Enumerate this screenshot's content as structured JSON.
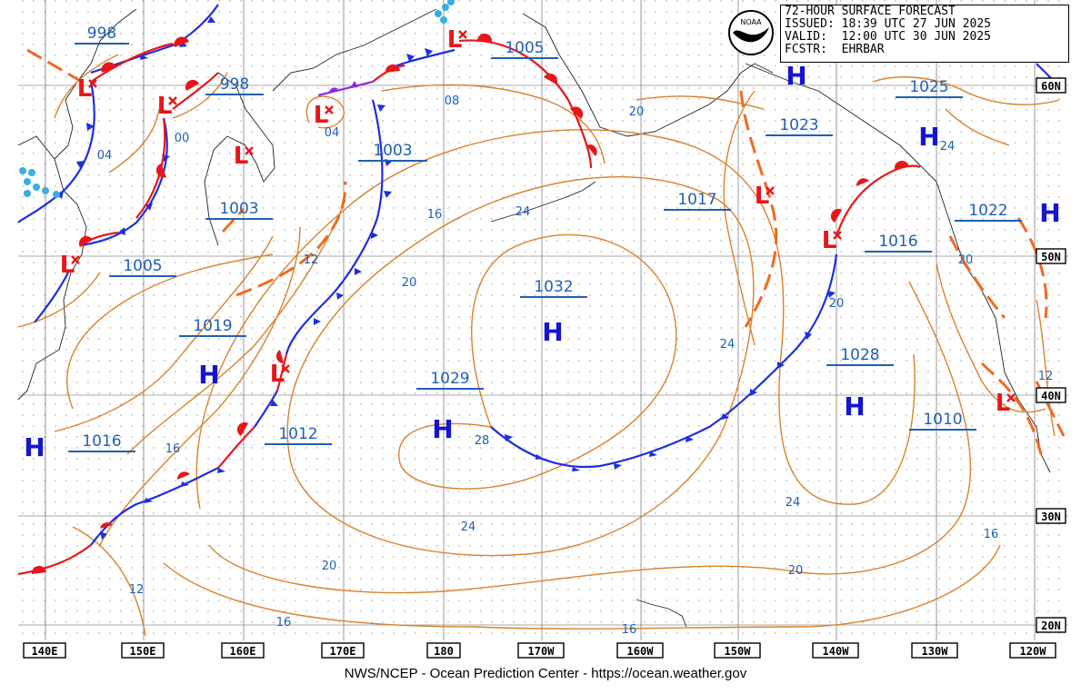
{
  "header": {
    "title": "72-HOUR SURFACE FORECAST",
    "issued": "ISSUED: 18:39 UTC 27 JUN 2025",
    "valid": "VALID:  12:00 UTC 30 JUN 2025",
    "forecaster": "FCSTR:  EHRBAR"
  },
  "logo": "NOAA",
  "footer": "NWS/NCEP - Ocean Prediction Center - https://ocean.weather.gov",
  "lon_labels": [
    "140E",
    "150E",
    "160E",
    "170E",
    "180",
    "170W",
    "160W",
    "150W",
    "140W",
    "130W",
    "120W"
  ],
  "lat_labels": [
    "60N",
    "50N",
    "40N",
    "30N",
    "20N"
  ],
  "pressure_labels": [
    "998",
    "998",
    "1005",
    "1003",
    "1003",
    "1005",
    "1019",
    "1016",
    "1012",
    "1029",
    "1032",
    "1017",
    "1023",
    "1025",
    "1016",
    "1022",
    "1028",
    "1010"
  ],
  "isobar_labels": [
    "04",
    "00",
    "04",
    "08",
    "20",
    "24",
    "16",
    "12",
    "20",
    "24",
    "20",
    "24",
    "20",
    "12",
    "16",
    "28",
    "24",
    "20",
    "16",
    "16",
    "12",
    "20",
    "16",
    "24",
    "20",
    "16"
  ],
  "high_symbol": "H",
  "low_symbol": "L",
  "colors": {
    "isobar": "#d9822b",
    "warm_front": "#e8161a",
    "cold_front": "#1e2ee0",
    "occluded": "#8a2be2",
    "trough": "#f06a20",
    "pressure_text": "#1f5fb5",
    "high": "#1515d0",
    "low": "#e8161a",
    "grid": "#000000"
  }
}
